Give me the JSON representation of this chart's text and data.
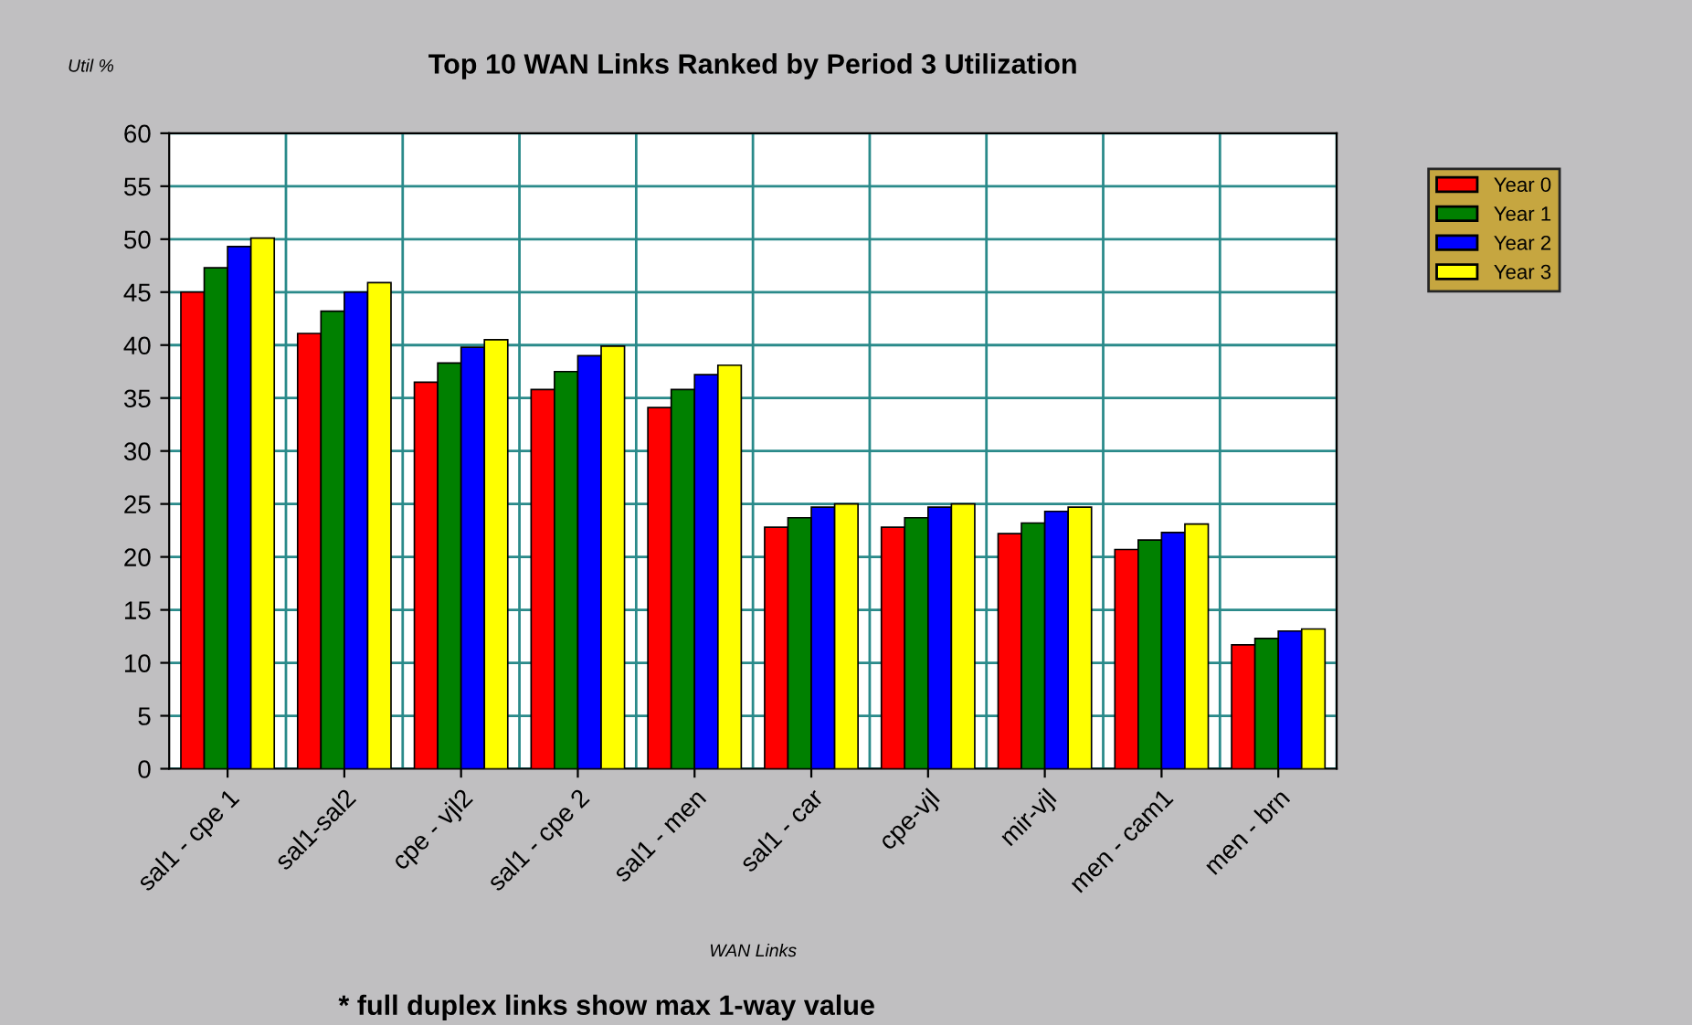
{
  "chart_data": {
    "type": "bar",
    "title": "Top 10 WAN Links Ranked by Period 3 Utilization",
    "xlabel": "WAN Links",
    "ylabel": "Util %",
    "categories": [
      "sal1 - cpe 1",
      "sal1-sal2",
      "cpe - vjl2",
      "sal1 - cpe 2",
      "sal1 - men",
      "sal1 - car",
      "cpe-vjl",
      "mir-vjl",
      "men - cam1",
      "men - brn"
    ],
    "series": [
      {
        "name": "Year 0",
        "color": "#ff0000",
        "values": [
          45.0,
          41.1,
          36.5,
          35.8,
          34.1,
          22.8,
          22.8,
          22.2,
          20.7,
          11.7
        ]
      },
      {
        "name": "Year 1",
        "color": "#008000",
        "values": [
          47.3,
          43.2,
          38.3,
          37.5,
          35.8,
          23.7,
          23.7,
          23.2,
          21.6,
          12.3
        ]
      },
      {
        "name": "Year 2",
        "color": "#0000ff",
        "values": [
          49.3,
          45.0,
          39.8,
          39.0,
          37.2,
          24.7,
          24.7,
          24.3,
          22.3,
          13.0
        ]
      },
      {
        "name": "Year 3",
        "color": "#ffff00",
        "values": [
          50.1,
          45.9,
          40.5,
          39.9,
          38.1,
          25.0,
          25.0,
          24.7,
          23.1,
          13.2
        ]
      }
    ],
    "ylim": [
      0,
      60
    ],
    "yticks": [
      0,
      5,
      10,
      15,
      20,
      25,
      30,
      35,
      40,
      45,
      50,
      55,
      60
    ],
    "grid": true,
    "legend": "top right",
    "annotations": [
      "* full duplex links show max 1-way value"
    ]
  }
}
